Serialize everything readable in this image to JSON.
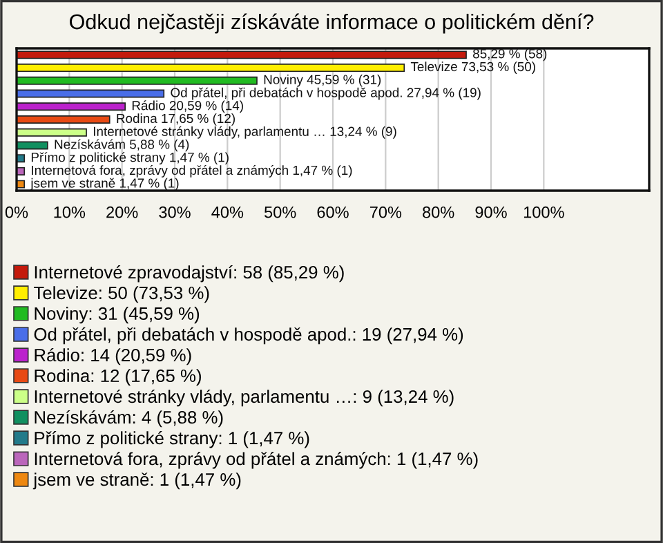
{
  "chart_data": {
    "type": "bar",
    "orientation": "horizontal",
    "title": "Odkud nejčastěji získáváte informace o politickém dění?",
    "categories": [
      null,
      null,
      null,
      null,
      null,
      null,
      null,
      null,
      null,
      null,
      null
    ],
    "series": [
      {
        "name": "Internetové zpravodajství: 58 (85,29 %)",
        "color": "#c41a0c",
        "values": [
          85.29,
          null,
          null,
          null,
          null,
          null,
          null,
          null,
          null,
          null,
          null
        ],
        "value_labels": [
          "85,29 % (58)",
          null,
          null,
          null,
          null,
          null,
          null,
          null,
          null,
          null,
          null
        ]
      },
      {
        "name": "Televize: 50 (73,53 %)",
        "color": "#ffee00",
        "values": [
          null,
          73.53,
          null,
          null,
          null,
          null,
          null,
          null,
          null,
          null,
          null
        ],
        "value_labels": [
          null,
          "Televize 73,53 % (50)",
          null,
          null,
          null,
          null,
          null,
          null,
          null,
          null,
          null
        ]
      },
      {
        "name": "Noviny: 31 (45,59 %)",
        "color": "#22bb22",
        "values": [
          null,
          null,
          45.59,
          null,
          null,
          null,
          null,
          null,
          null,
          null,
          null
        ],
        "value_labels": [
          null,
          null,
          "Noviny 45,59 % (31)",
          null,
          null,
          null,
          null,
          null,
          null,
          null,
          null
        ]
      },
      {
        "name": "Od přátel, při debatách v hospodě apod.: 19 (27,94 %)",
        "color": "#4a6ee8",
        "values": [
          null,
          null,
          null,
          27.94,
          null,
          null,
          null,
          null,
          null,
          null,
          null
        ],
        "value_labels": [
          null,
          null,
          null,
          "Od přátel, při debatách v hospodě apod. 27,94 % (19)",
          null,
          null,
          null,
          null,
          null,
          null,
          null
        ]
      },
      {
        "name": "Rádio: 14 (20,59 %)",
        "color": "#bb22cc",
        "values": [
          null,
          null,
          null,
          null,
          20.59,
          null,
          null,
          null,
          null,
          null,
          null
        ],
        "value_labels": [
          null,
          null,
          null,
          null,
          "Rádio 20,59 % (14)",
          null,
          null,
          null,
          null,
          null,
          null
        ]
      },
      {
        "name": "Rodina: 12 (17,65 %)",
        "color": "#e84a14",
        "values": [
          null,
          null,
          null,
          null,
          null,
          17.65,
          null,
          null,
          null,
          null,
          null
        ],
        "value_labels": [
          null,
          null,
          null,
          null,
          null,
          "Rodina 17,65 % (12)",
          null,
          null,
          null,
          null,
          null
        ]
      },
      {
        "name": "Internetové stránky vlády, parlamentu …: 9 (13,24 %)",
        "color": "#ccff88",
        "values": [
          null,
          null,
          null,
          null,
          null,
          null,
          13.24,
          null,
          null,
          null,
          null
        ],
        "value_labels": [
          null,
          null,
          null,
          null,
          null,
          null,
          "Internetové stránky vlády, parlamentu … 13,24 % (9)",
          null,
          null,
          null,
          null
        ]
      },
      {
        "name": "Nezískávám: 4 (5,88 %)",
        "color": "#119060",
        "values": [
          null,
          null,
          null,
          null,
          null,
          null,
          null,
          5.88,
          null,
          null,
          null
        ],
        "value_labels": [
          null,
          null,
          null,
          null,
          null,
          null,
          null,
          "Nezískávám 5,88 % (4)",
          null,
          null,
          null
        ]
      },
      {
        "name": "Přímo z politické strany: 1 (1,47 %)",
        "color": "#227a8a",
        "values": [
          null,
          null,
          null,
          null,
          null,
          null,
          null,
          null,
          1.47,
          null,
          null
        ],
        "value_labels": [
          null,
          null,
          null,
          null,
          null,
          null,
          null,
          null,
          "Přímo z politické strany 1,47 % (1)",
          null,
          null
        ]
      },
      {
        "name": "Internetová fora, zprávy od přátel a známých: 1 (1,47 %)",
        "color": "#bb66bb",
        "values": [
          null,
          null,
          null,
          null,
          null,
          null,
          null,
          null,
          null,
          1.47,
          null
        ],
        "value_labels": [
          null,
          null,
          null,
          null,
          null,
          null,
          null,
          null,
          null,
          "Internetová fora, zprávy od přátel a známých 1,47 % (1)",
          null
        ]
      },
      {
        "name": "jsem ve straně: 1 (1,47 %)",
        "color": "#ee8811",
        "values": [
          null,
          null,
          null,
          null,
          null,
          null,
          null,
          null,
          null,
          null,
          1.47
        ],
        "value_labels": [
          null,
          null,
          null,
          null,
          null,
          null,
          null,
          null,
          null,
          null,
          "jsem ve straně 1,47 % (1)"
        ]
      }
    ],
    "xlim": [
      0,
      120
    ],
    "xticks": [
      {
        "value": 0,
        "label": "0%"
      },
      {
        "value": 10,
        "label": "10%"
      },
      {
        "value": 20,
        "label": "20%"
      },
      {
        "value": 30,
        "label": "30%"
      },
      {
        "value": 40,
        "label": "40%"
      },
      {
        "value": 50,
        "label": "50%"
      },
      {
        "value": 60,
        "label": "60%"
      },
      {
        "value": 70,
        "label": "70%"
      },
      {
        "value": 80,
        "label": "80%"
      },
      {
        "value": 90,
        "label": "90%"
      },
      {
        "value": 100,
        "label": "100%"
      }
    ],
    "grid": "x",
    "legend": "bottom",
    "tick_labels": "x"
  }
}
